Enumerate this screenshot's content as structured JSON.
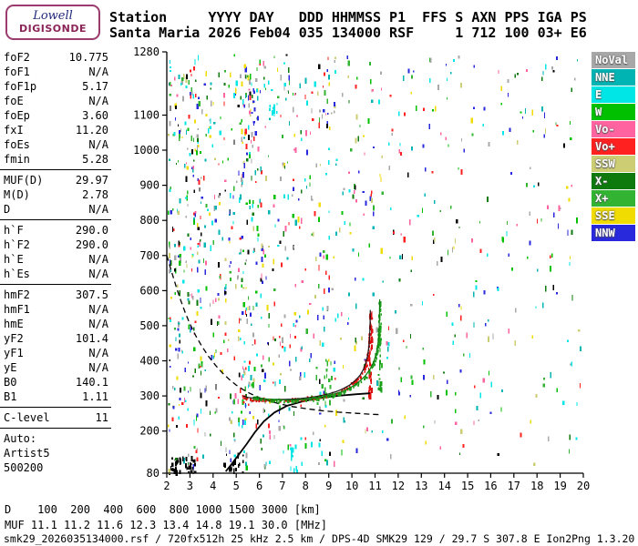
{
  "logo": {
    "line1": "Lowell",
    "line2": "DIGISONDE"
  },
  "header": {
    "line1": "Station     YYYY DAY   DDD HHMMSS P1  FFS S AXN PPS IGA PS",
    "line2": "Santa Maria 2026 Feb04 035 134000 RSF     1 712 100 03+ E6"
  },
  "parameters": {
    "groups": [
      {
        "rows": [
          {
            "label": "foF2",
            "value": "10.775"
          },
          {
            "label": "foF1",
            "value": "N/A"
          },
          {
            "label": "foF1p",
            "value": "5.17"
          },
          {
            "label": "foE",
            "value": "N/A"
          },
          {
            "label": "foEp",
            "value": "3.60"
          },
          {
            "label": "fxI",
            "value": "11.20"
          },
          {
            "label": "foEs",
            "value": "N/A"
          },
          {
            "label": "fmin",
            "value": "5.28"
          }
        ]
      },
      {
        "rows": [
          {
            "label": "MUF(D)",
            "value": "29.97"
          },
          {
            "label": "M(D)",
            "value": "2.78"
          },
          {
            "label": "D",
            "value": "N/A"
          }
        ]
      },
      {
        "rows": [
          {
            "label": "h`F",
            "value": "290.0"
          },
          {
            "label": "h`F2",
            "value": "290.0"
          },
          {
            "label": "h`E",
            "value": "N/A"
          },
          {
            "label": "h`Es",
            "value": "N/A"
          }
        ]
      },
      {
        "rows": [
          {
            "label": "hmF2",
            "value": "307.5"
          },
          {
            "label": "hmF1",
            "value": "N/A"
          },
          {
            "label": "hmE",
            "value": "N/A"
          },
          {
            "label": "yF2",
            "value": "101.4"
          },
          {
            "label": "yF1",
            "value": "N/A"
          },
          {
            "label": "yE",
            "value": "N/A"
          },
          {
            "label": "B0",
            "value": "140.1"
          },
          {
            "label": "B1",
            "value": "1.11"
          }
        ]
      },
      {
        "rows": [
          {
            "label": "C-level",
            "value": "11"
          }
        ]
      },
      {
        "rows": [
          {
            "label": "Auto:",
            "value": ""
          },
          {
            "label": "Artist5",
            "value": ""
          },
          {
            "label": "500200",
            "value": ""
          }
        ]
      }
    ]
  },
  "legend": {
    "items": [
      {
        "label": "NoVal",
        "color": "#a8a8a8"
      },
      {
        "label": "NNE",
        "color": "#00b4b4"
      },
      {
        "label": "E",
        "color": "#00e6e6"
      },
      {
        "label": "W",
        "color": "#00c000"
      },
      {
        "label": "Vo-",
        "color": "#ff64a0"
      },
      {
        "label": "Vo+",
        "color": "#ff2020"
      },
      {
        "label": "SSW",
        "color": "#cdcd74"
      },
      {
        "label": "X-",
        "color": "#0e7a0e"
      },
      {
        "label": "X+",
        "color": "#32b432"
      },
      {
        "label": "SSE",
        "color": "#f0dc00"
      },
      {
        "label": "NNW",
        "color": "#2828dc"
      }
    ]
  },
  "chart_data": {
    "type": "scatter",
    "title": "Digisonde ionogram, Santa Maria 2026 Feb04 035 134000",
    "x_axis": {
      "unit": "MHz",
      "min": 2,
      "max": 20,
      "ticks": [
        2,
        3,
        4,
        5,
        6,
        7,
        8,
        9,
        10,
        11,
        12,
        13,
        14,
        15,
        16,
        17,
        18,
        19,
        20
      ]
    },
    "y_axis": {
      "unit": "km",
      "min": 80,
      "max": 1280,
      "ticks": [
        1280,
        1100,
        1000,
        900,
        800,
        700,
        600,
        500,
        400,
        300,
        200,
        80
      ]
    },
    "scaled_values": {
      "foF2": 10.775,
      "fxI": 11.2,
      "fmin": 5.28,
      "hF": 290.0,
      "hmF2": 307.5,
      "MUF3000": 29.97
    },
    "curves": [
      {
        "name": "muf-transmission-curve",
        "style": "dashed",
        "color": "#000000",
        "width": 1.3,
        "points": [
          [
            2.0,
            700
          ],
          [
            2.2,
            655
          ],
          [
            2.4,
            612
          ],
          [
            2.6,
            573
          ],
          [
            2.8,
            537
          ],
          [
            3.0,
            505
          ],
          [
            3.25,
            472
          ],
          [
            3.5,
            443
          ],
          [
            3.8,
            413
          ],
          [
            4.1,
            388
          ],
          [
            4.4,
            366
          ],
          [
            4.7,
            347
          ],
          [
            5.0,
            331
          ],
          [
            5.3,
            318
          ],
          [
            5.6,
            307
          ],
          [
            6.0,
            295
          ],
          [
            6.4,
            286
          ],
          [
            6.9,
            277
          ],
          [
            7.4,
            270
          ],
          [
            8.0,
            264
          ],
          [
            8.7,
            258
          ],
          [
            9.4,
            254
          ],
          [
            10.1,
            251
          ],
          [
            10.8,
            248
          ],
          [
            11.2,
            247
          ]
        ]
      },
      {
        "name": "electron-density-profile",
        "style": "solid",
        "color": "#000000",
        "width": 1.8,
        "points": [
          [
            4.55,
            85
          ],
          [
            4.8,
            106
          ],
          [
            5.1,
            132
          ],
          [
            5.45,
            163
          ],
          [
            5.8,
            196
          ],
          [
            6.2,
            228
          ],
          [
            6.65,
            253
          ],
          [
            7.2,
            272
          ],
          [
            7.9,
            285
          ],
          [
            8.7,
            295
          ],
          [
            9.5,
            301
          ],
          [
            10.2,
            305
          ],
          [
            10.775,
            307.5
          ]
        ]
      }
    ],
    "traces": [
      {
        "name": "o-trace",
        "dot_color": "#e01010",
        "line_color": "#1a1a1a",
        "dots": 180,
        "points": [
          [
            5.3,
            300
          ],
          [
            5.5,
            296
          ],
          [
            5.8,
            293
          ],
          [
            6.2,
            291
          ],
          [
            6.6,
            290
          ],
          [
            7.0,
            290
          ],
          [
            7.4,
            291
          ],
          [
            7.8,
            293
          ],
          [
            8.2,
            296
          ],
          [
            8.6,
            300
          ],
          [
            9.0,
            306
          ],
          [
            9.3,
            312
          ],
          [
            9.6,
            320
          ],
          [
            9.9,
            331
          ],
          [
            10.15,
            344
          ],
          [
            10.35,
            359
          ],
          [
            10.5,
            376
          ],
          [
            10.6,
            394
          ],
          [
            10.68,
            415
          ],
          [
            10.73,
            438
          ],
          [
            10.76,
            462
          ],
          [
            10.78,
            492
          ],
          [
            10.79,
            520
          ],
          [
            10.795,
            545
          ]
        ]
      },
      {
        "name": "x-trace",
        "dot_color": "#18a018",
        "line_color": "#0e7a0e",
        "dots": 150,
        "points": [
          [
            5.72,
            297
          ],
          [
            6.0,
            294
          ],
          [
            6.35,
            291
          ],
          [
            6.75,
            289
          ],
          [
            7.15,
            288
          ],
          [
            7.55,
            289
          ],
          [
            7.95,
            291
          ],
          [
            8.35,
            294
          ],
          [
            8.75,
            298
          ],
          [
            9.15,
            304
          ],
          [
            9.5,
            311
          ],
          [
            9.8,
            319
          ],
          [
            10.1,
            330
          ],
          [
            10.35,
            343
          ],
          [
            10.6,
            359
          ],
          [
            10.8,
            378
          ],
          [
            10.95,
            398
          ],
          [
            11.05,
            420
          ],
          [
            11.12,
            444
          ],
          [
            11.16,
            470
          ],
          [
            11.18,
            498
          ],
          [
            11.19,
            525
          ],
          [
            11.2,
            575
          ]
        ]
      }
    ],
    "noise": {
      "seed": 1337,
      "uniform_count": 380,
      "palette": [
        [
          "#a8a8a8",
          0.1
        ],
        [
          "#00b4b4",
          0.08
        ],
        [
          "#00e6e6",
          0.12
        ],
        [
          "#00c000",
          0.08
        ],
        [
          "#ff64a0",
          0.08
        ],
        [
          "#ff2020",
          0.1
        ],
        [
          "#cdcd74",
          0.06
        ],
        [
          "#0e7a0e",
          0.06
        ],
        [
          "#32b432",
          0.08
        ],
        [
          "#f0dc00",
          0.07
        ],
        [
          "#2828dc",
          0.12
        ],
        [
          "#000000",
          0.05
        ]
      ],
      "columns": [
        {
          "f": 2.1,
          "n": 20
        },
        {
          "f": 2.3,
          "n": 14
        },
        {
          "f": 2.5,
          "n": 18
        },
        {
          "f": 2.7,
          "n": 16
        },
        {
          "f": 2.85,
          "n": 24
        },
        {
          "f": 3.0,
          "n": 20
        },
        {
          "f": 3.15,
          "n": 26
        },
        {
          "f": 3.3,
          "n": 30
        },
        {
          "f": 3.45,
          "n": 20
        },
        {
          "f": 3.65,
          "n": 16
        },
        {
          "f": 3.85,
          "n": 14
        },
        {
          "f": 4.05,
          "n": 14
        },
        {
          "f": 4.25,
          "n": 16
        },
        {
          "f": 4.5,
          "n": 14
        },
        {
          "f": 4.7,
          "n": 16
        },
        {
          "f": 4.9,
          "n": 14
        },
        {
          "f": 5.1,
          "n": 22
        },
        {
          "f": 5.25,
          "n": 30
        },
        {
          "f": 5.4,
          "n": 34
        },
        {
          "f": 5.55,
          "n": 28
        },
        {
          "f": 5.7,
          "n": 22
        },
        {
          "f": 5.85,
          "n": 18
        },
        {
          "f": 6.05,
          "n": 16
        },
        {
          "f": 6.2,
          "n": 18
        },
        {
          "f": 6.4,
          "n": 14
        },
        {
          "f": 6.6,
          "n": 16
        },
        {
          "f": 6.85,
          "n": 12
        },
        {
          "f": 7.05,
          "n": 14
        },
        {
          "f": 7.25,
          "n": 12
        },
        {
          "f": 7.5,
          "n": 16
        },
        {
          "f": 7.75,
          "n": 10
        },
        {
          "f": 8.0,
          "n": 12
        },
        {
          "f": 8.25,
          "n": 10
        },
        {
          "f": 8.55,
          "n": 14
        },
        {
          "f": 8.75,
          "n": 10
        },
        {
          "f": 8.95,
          "n": 16
        },
        {
          "f": 9.25,
          "n": 12
        },
        {
          "f": 9.55,
          "n": 9
        },
        {
          "f": 9.85,
          "n": 9
        },
        {
          "f": 10.15,
          "n": 10
        },
        {
          "f": 10.5,
          "n": 9
        },
        {
          "f": 10.85,
          "n": 8
        },
        {
          "f": 11.25,
          "n": 9
        },
        {
          "f": 11.65,
          "n": 8
        },
        {
          "f": 12.05,
          "n": 8
        },
        {
          "f": 12.55,
          "n": 6
        },
        {
          "f": 13.05,
          "n": 6
        },
        {
          "f": 13.55,
          "n": 6
        },
        {
          "f": 14.05,
          "n": 6
        },
        {
          "f": 14.65,
          "n": 5
        },
        {
          "f": 15.25,
          "n": 5
        },
        {
          "f": 15.85,
          "n": 4
        },
        {
          "f": 16.45,
          "n": 4
        },
        {
          "f": 17.05,
          "n": 4
        },
        {
          "f": 17.65,
          "n": 4
        },
        {
          "f": 18.25,
          "n": 4
        },
        {
          "f": 18.85,
          "n": 4
        },
        {
          "f": 19.45,
          "n": 4
        }
      ],
      "clusters": [
        {
          "f1": 2.0,
          "f2": 3.2,
          "h1": 84,
          "h2": 130,
          "n": 45,
          "color": "#000000"
        },
        {
          "f1": 4.4,
          "f2": 5.3,
          "h1": 84,
          "h2": 140,
          "n": 20,
          "color": "#000000"
        },
        {
          "f1": 2.0,
          "f2": 2.6,
          "h1": 84,
          "h2": 1270,
          "n": 30
        },
        {
          "f1": 7.3,
          "f2": 7.6,
          "h1": 90,
          "h2": 170,
          "n": 16,
          "color": "#00e6e6"
        },
        {
          "f1": 5.6,
          "f2": 6.1,
          "h1": 1050,
          "h2": 1180,
          "n": 10,
          "color": "#2828dc"
        },
        {
          "f1": 6.4,
          "f2": 6.8,
          "h1": 1100,
          "h2": 1200,
          "n": 8,
          "color": "#00e6e6"
        },
        {
          "f1": 8.4,
          "f2": 9.1,
          "h1": 280,
          "h2": 420,
          "n": 18,
          "color": "#32b432"
        },
        {
          "f1": 10.7,
          "f2": 10.85,
          "h1": 300,
          "h2": 545,
          "n": 40,
          "color": "#e01010"
        },
        {
          "f1": 11.12,
          "f2": 11.24,
          "h1": 310,
          "h2": 575,
          "n": 32,
          "color": "#18a018"
        }
      ]
    }
  },
  "distance_table": {
    "rows": [
      {
        "label": "D",
        "values": [
          "100",
          "200",
          "400",
          "600",
          "800",
          "1000",
          "1500",
          "3000"
        ],
        "unit": "[km]"
      },
      {
        "label": "MUF",
        "values": [
          "11.1",
          "11.2",
          "11.6",
          "12.3",
          "13.4",
          "14.8",
          "19.1",
          "30.0"
        ],
        "unit": "[MHz]"
      }
    ]
  },
  "statusbar": {
    "text": "smk29_2026035134000.rsf / 720fx512h 25 kHz 2.5 km / DPS-4D SMK29 129 / 29.7 S 307.8 E Ion2Png 1.3.20"
  }
}
